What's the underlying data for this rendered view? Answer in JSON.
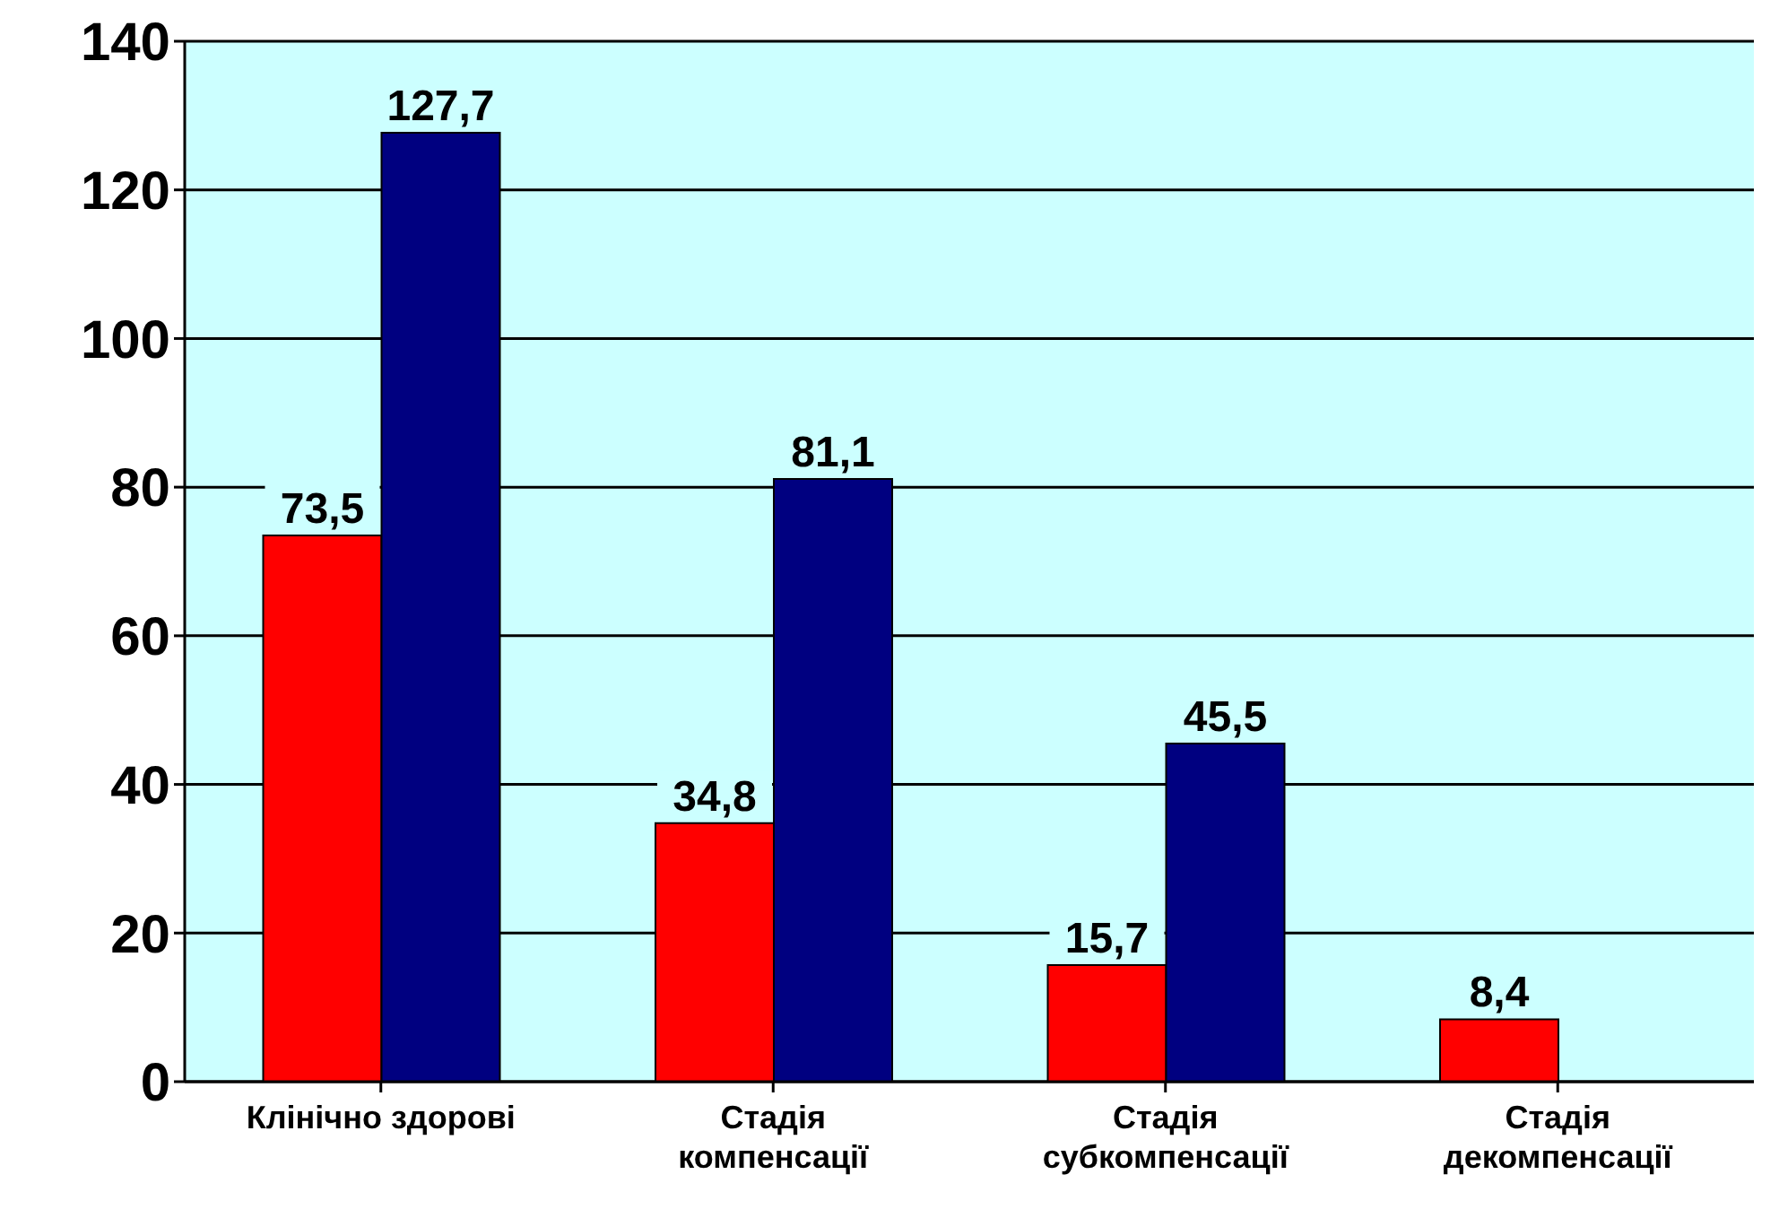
{
  "chart_data": {
    "type": "bar",
    "categories": [
      "Клінічно здорові",
      "Стадія компенсації",
      "Стадія субкомпенсації",
      "Стадія декомпенсації"
    ],
    "series": [
      {
        "color": "#ff0000",
        "values": [
          73.5,
          34.8,
          15.7,
          8.4
        ],
        "value_labels": [
          "73,5",
          "34,8",
          "15,7",
          "8,4"
        ]
      },
      {
        "color": "#000080",
        "values": [
          127.7,
          81.1,
          45.5,
          null
        ],
        "value_labels": [
          "127,7",
          "81,1",
          "45,5",
          null
        ]
      }
    ],
    "ylim": [
      0,
      140
    ],
    "yticks": [
      0,
      20,
      40,
      60,
      80,
      100,
      120,
      140
    ],
    "grid": "y",
    "legend": false
  }
}
